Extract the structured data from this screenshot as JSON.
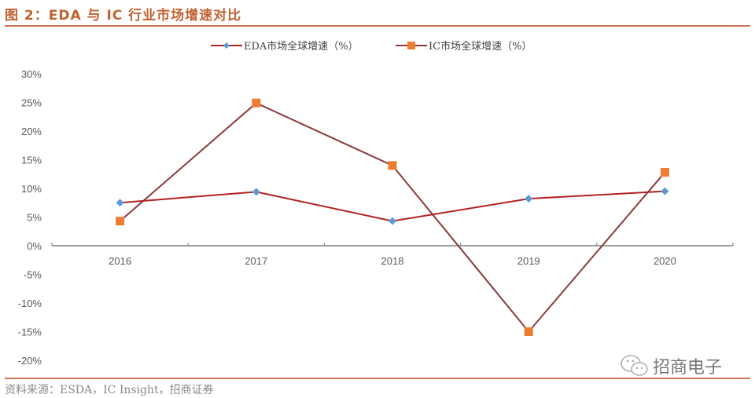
{
  "title": "图 2：EDA 与 IC 行业市场增速对比",
  "source": "资料来源：ESDA，IC Insight，招商证券",
  "watermark": "招商电子",
  "watermark_icon": "wechat-icon",
  "legend": [
    {
      "label": "EDA市场全球增速（%）",
      "line_color": "#b22222",
      "marker": "diamond",
      "marker_color": "#5b9bd5"
    },
    {
      "label": "IC市场全球增速（%）",
      "line_color": "#8b3a3a",
      "marker": "square",
      "marker_color": "#ed7d31"
    }
  ],
  "colors": {
    "title": "#c0622f",
    "rule": "#c97556",
    "axis": "#7f7f7f",
    "eda_line": "#b22222",
    "eda_marker": "#5b9bd5",
    "ic_line": "#8b3a3a",
    "ic_marker": "#ed7d31"
  },
  "chart_data": {
    "type": "line",
    "title": "EDA 与 IC 行业市场增速对比",
    "xlabel": "",
    "ylabel": "",
    "categories": [
      "2016",
      "2017",
      "2018",
      "2019",
      "2020"
    ],
    "series": [
      {
        "name": "EDA市场全球增速（%）",
        "values": [
          7.5,
          9.4,
          4.3,
          8.2,
          9.5
        ]
      },
      {
        "name": "IC市场全球增速（%）",
        "values": [
          4.3,
          24.9,
          14.0,
          -15.0,
          12.8
        ]
      }
    ],
    "y_ticks": [
      "30%",
      "25%",
      "20%",
      "15%",
      "10%",
      "5%",
      "0%",
      "-5%",
      "-10%",
      "-15%",
      "-20%"
    ],
    "ylim": [
      -20,
      30
    ],
    "grid": false,
    "legend_position": "top"
  }
}
